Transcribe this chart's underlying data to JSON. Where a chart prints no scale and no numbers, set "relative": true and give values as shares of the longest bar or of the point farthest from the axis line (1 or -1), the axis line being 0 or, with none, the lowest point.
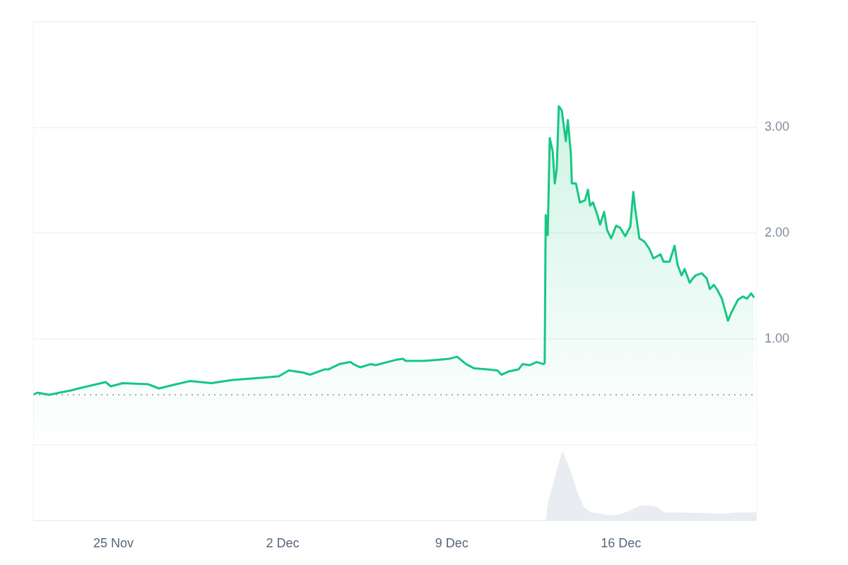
{
  "chart_data": [
    {
      "type": "area",
      "color": "#16c784",
      "x": [
        "--11-21T17:00",
        "--11-21T21:00",
        "--11-22T09:00",
        "--11-22T19:00",
        "--11-23T06:00",
        "--11-23T14:00",
        "--11-24T17:00",
        "--11-24T22:00",
        "--11-25T10:00",
        "--11-26T11:00",
        "--11-26T22:00",
        "--11-27T15:00",
        "--11-28T05:00",
        "--11-29T02:00",
        "--11-29T23:00",
        "--12-01T03:00",
        "--12-01T21:00",
        "--12-02T07:00",
        "--12-02T21:00",
        "--12-03T04:00",
        "--12-03T18:00",
        "--12-03T22:00",
        "--12-04T09:00",
        "--12-04T20:00",
        "--12-04T23:00",
        "--12-05T06:00",
        "--12-05T16:00",
        "--12-05T21:00",
        "--12-06T17:00",
        "--12-07T00:00",
        "--12-07T03:00",
        "--12-07T21:00",
        "--12-08T11:00",
        "--12-08T22:00",
        "--12-09T06:00",
        "--12-09T15:00",
        "--12-09T23:00",
        "--12-10T12:00",
        "--12-10T22:00",
        "--12-11T02:00",
        "--12-11T09:00",
        "--12-11T19:00",
        "--12-11T23:00",
        "--12-12T06:00",
        "--12-12T13:00",
        "--12-12T20:00",
        "--12-12T21:00",
        "--12-12T22:00",
        "--12-13T00:00",
        "--12-13T02:00",
        "--12-13T05:00",
        "--12-13T07:00",
        "--12-13T09:00",
        "--12-13T11:00",
        "--12-13T14:00",
        "--12-13T18:00",
        "--12-13T20:00",
        "--12-13T23:00",
        "--12-14T00:00",
        "--12-14T04:00",
        "--12-14T08:00",
        "--12-14T13:00",
        "--12-14T16:00",
        "--12-14T18:00",
        "--12-14T21:00",
        "--12-15T01:00",
        "--12-15T04:00",
        "--12-15T08:00",
        "--12-15T11:00",
        "--12-15T15:00",
        "--12-15T20:00",
        "--12-16T00:00",
        "--12-16T05:00",
        "--12-16T10:00",
        "--12-16T13:00",
        "--12-16T15:00",
        "--12-16T19:00",
        "--12-17T00:00",
        "--12-17T05:00",
        "--12-17T09:00",
        "--12-17T16:00",
        "--12-17T19:00",
        "--12-18T01:00",
        "--12-18T06:00",
        "--12-18T09:00",
        "--12-18T13:00",
        "--12-18T16:00",
        "--12-18T21:00",
        "--12-19T00:00",
        "--12-19T03:00",
        "--12-19T09:00",
        "--12-19T14:00",
        "--12-19T17:00",
        "--12-19T21:00",
        "--12-20T00:00",
        "--12-20T05:00",
        "--12-20T11:00",
        "--12-20T14:00",
        "--12-20T21:00",
        "--12-21T02:00",
        "--12-21T06:00",
        "--12-21T10:00",
        "--12-21T13:00"
      ],
      "values": [
        0.47,
        0.49,
        0.47,
        0.49,
        0.51,
        0.53,
        0.59,
        0.55,
        0.58,
        0.57,
        0.53,
        0.57,
        0.6,
        0.58,
        0.61,
        0.63,
        0.645,
        0.7,
        0.68,
        0.66,
        0.71,
        0.71,
        0.76,
        0.78,
        0.76,
        0.73,
        0.76,
        0.75,
        0.8,
        0.81,
        0.79,
        0.79,
        0.8,
        0.81,
        0.83,
        0.76,
        0.72,
        0.71,
        0.7,
        0.66,
        0.69,
        0.71,
        0.76,
        0.75,
        0.78,
        0.76,
        0.77,
        2.17,
        1.98,
        2.9,
        2.77,
        2.47,
        2.61,
        3.2,
        3.16,
        2.87,
        3.07,
        2.75,
        2.47,
        2.47,
        2.29,
        2.31,
        2.41,
        2.26,
        2.29,
        2.18,
        2.08,
        2.2,
        2.03,
        1.95,
        2.07,
        2.05,
        1.97,
        2.06,
        2.39,
        2.22,
        1.95,
        1.92,
        1.85,
        1.76,
        1.8,
        1.73,
        1.73,
        1.88,
        1.7,
        1.6,
        1.66,
        1.53,
        1.57,
        1.6,
        1.62,
        1.57,
        1.47,
        1.51,
        1.47,
        1.38,
        1.17,
        1.24,
        1.37,
        1.4,
        1.38,
        1.43,
        1.39
      ],
      "xlim": [
        "--11-21T17:00",
        "--12-21T15:00"
      ],
      "ylim": [
        -0.72,
        4
      ],
      "xticks": [
        {
          "value": "--11-25",
          "label": "25 Nov"
        },
        {
          "value": "--12-02",
          "label": "2 Dec"
        },
        {
          "value": "--12-09",
          "label": "9 Dec"
        },
        {
          "value": "--12-16",
          "label": "16 Dec"
        }
      ],
      "yticks": [
        {
          "value": 0,
          "label": null
        },
        {
          "value": 1,
          "label": "1.00"
        },
        {
          "value": 2,
          "label": "2.00"
        },
        {
          "value": 3,
          "label": "3.00"
        },
        {
          "value": 4,
          "label": null
        }
      ],
      "grid": "y",
      "tick_labels": "y",
      "ref_lines": [
        {
          "axis": "y",
          "value": 0.47,
          "color": "#8a8f99",
          "line_style": "dotted"
        }
      ]
    },
    {
      "type": "area",
      "relative": true,
      "color": "#e9edf2",
      "xlim": [
        "--11-21T17:00",
        "--12-21T15:00"
      ],
      "xticks": [
        {
          "value": "--11-25",
          "label": "25 Nov"
        },
        {
          "value": "--12-02",
          "label": "2 Dec"
        },
        {
          "value": "--12-09",
          "label": "9 Dec"
        },
        {
          "value": "--12-16",
          "label": "16 Dec"
        }
      ],
      "x": [
        "--11-21T17:00",
        "--12-12T22:00",
        "--12-13T00:00",
        "--12-13T07:00",
        "--12-13T14:00",
        "--12-13T21:00",
        "--12-14T04:00",
        "--12-14T11:00",
        "--12-14T18:00",
        "--12-15T01:00",
        "--12-15T11:00",
        "--12-15T22:00",
        "--12-16T08:00",
        "--12-16T19:00",
        "--12-17T05:00",
        "--12-17T12:00",
        "--12-17T19:00",
        "--12-18T09:00",
        "--12-19T14:00",
        "--12-20T04:00",
        "--12-20T18:00",
        "--12-21T15:00"
      ],
      "values": [
        0,
        0,
        0.25,
        0.64,
        1,
        0.75,
        0.42,
        0.19,
        0.11,
        0.1,
        0.07,
        0.08,
        0.13,
        0.21,
        0.21,
        0.19,
        0.11,
        0.11,
        0.1,
        0.09,
        0.11,
        0.11
      ]
    }
  ]
}
